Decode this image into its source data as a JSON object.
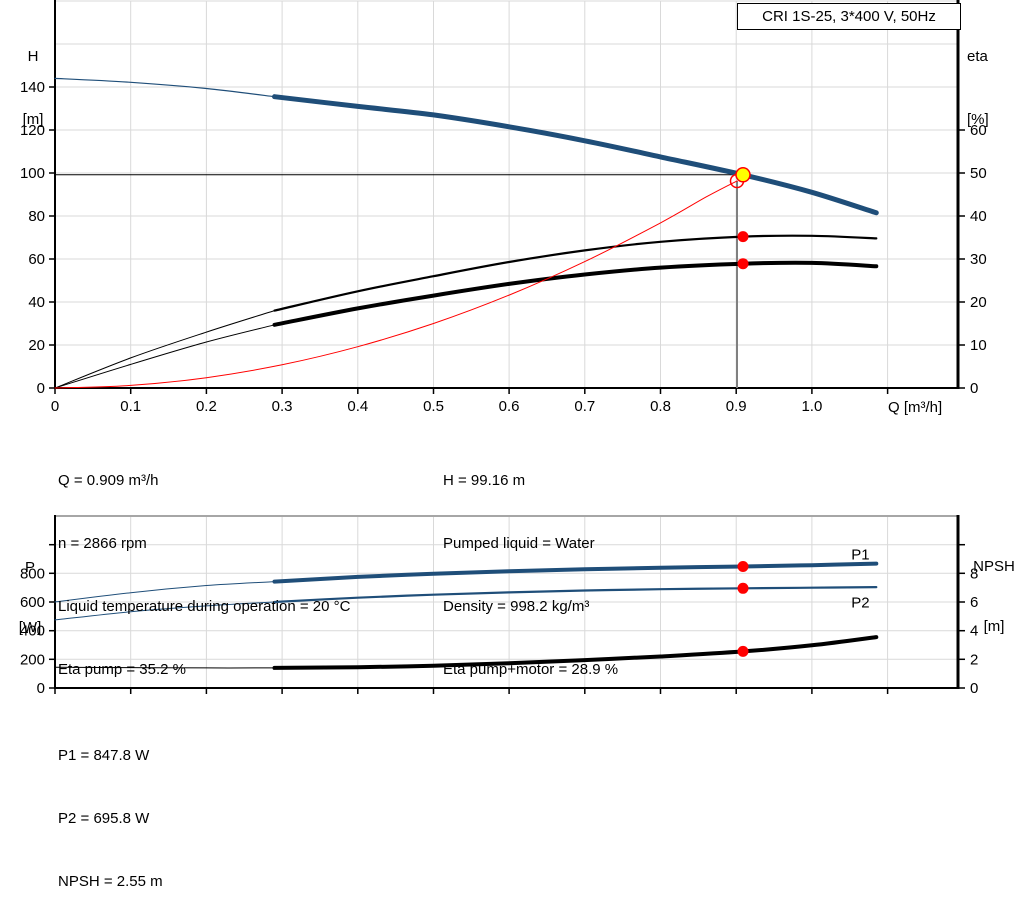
{
  "header": {
    "title_box": "CRI 1S-25, 3*400 V, 50Hz"
  },
  "colors": {
    "blue": "#1f4e79",
    "red": "#ff0000",
    "yellow": "#ffff00",
    "black": "#000000",
    "grid": "#d9d9d9",
    "grid_dark": "#a6a6a6",
    "duty_line": "#808080"
  },
  "chart_data": [
    {
      "type": "line",
      "title": "CRI 1S-25, 3*400 V, 50Hz",
      "x_axis": {
        "label": "Q [m³/h]",
        "min": 0,
        "max": 1.193,
        "ticks": [
          0,
          0.1,
          0.2,
          0.3,
          0.4,
          0.5,
          0.6,
          0.7,
          0.8,
          0.9,
          1.0,
          1.1
        ],
        "tick_labels": [
          "0",
          "0.1",
          "0.2",
          "0.3",
          "0.4",
          "0.5",
          "0.6",
          "0.7",
          "0.8",
          "0.9",
          "1.0",
          ""
        ],
        "grid": [
          0.1,
          0.2,
          0.3,
          0.4,
          0.5,
          0.6,
          0.7,
          0.8,
          0.9,
          1.0,
          1.1
        ]
      },
      "y_left": {
        "label": [
          "H",
          "[m]"
        ],
        "min": 0,
        "max": 180,
        "ticks": [
          0,
          20,
          40,
          60,
          80,
          100,
          120,
          140
        ],
        "tick_labels": [
          "0",
          "20",
          "40",
          "60",
          "80",
          "100",
          "120",
          "140"
        ],
        "grid": [
          20,
          40,
          60,
          80,
          100,
          120,
          140,
          160,
          180
        ]
      },
      "y_right": {
        "label": [
          "eta",
          "[%]"
        ],
        "min": 0,
        "max": 90,
        "ticks": [
          0,
          10,
          20,
          30,
          40,
          50,
          60
        ],
        "tick_labels": [
          "0",
          "10",
          "20",
          "30",
          "40",
          "50",
          "60"
        ]
      },
      "duty": {
        "q": 0.909,
        "h": 99.16,
        "h_line_to_q": 0.901,
        "v_line_q": 0.901,
        "v_line_top": 96.3
      },
      "series": [
        {
          "name": "qh-curve-thin",
          "axis": "left",
          "color": "#1f4e79",
          "width": 1.2,
          "points": [
            [
              0,
              144
            ],
            [
              0.1,
              142.2
            ],
            [
              0.2,
              139.3
            ],
            [
              0.29,
              135.5
            ]
          ]
        },
        {
          "name": "qh-curve",
          "axis": "left",
          "color": "#1f4e79",
          "width": 5,
          "points": [
            [
              0.29,
              135.5
            ],
            [
              0.4,
              131
            ],
            [
              0.5,
              127
            ],
            [
              0.6,
              121.5
            ],
            [
              0.7,
              115
            ],
            [
              0.8,
              107.5
            ],
            [
              0.909,
              99.16
            ],
            [
              1.0,
              91
            ],
            [
              1.085,
              81.5
            ]
          ]
        },
        {
          "name": "eta-pump-thin",
          "axis": "right",
          "color": "#000000",
          "width": 1,
          "points": [
            [
              0,
              0
            ],
            [
              0.1,
              7
            ],
            [
              0.2,
              13
            ],
            [
              0.29,
              18
            ]
          ]
        },
        {
          "name": "eta-pump",
          "axis": "right",
          "color": "#000000",
          "width": 2.2,
          "points": [
            [
              0.29,
              18
            ],
            [
              0.4,
              22.5
            ],
            [
              0.5,
              26
            ],
            [
              0.6,
              29.3
            ],
            [
              0.7,
              32
            ],
            [
              0.8,
              34
            ],
            [
              0.909,
              35.2
            ],
            [
              1.0,
              35.4
            ],
            [
              1.085,
              34.8
            ]
          ]
        },
        {
          "name": "eta-pump-motor-thin",
          "axis": "right",
          "color": "#000000",
          "width": 1,
          "points": [
            [
              0,
              0
            ],
            [
              0.1,
              5.5
            ],
            [
              0.2,
              10.7
            ],
            [
              0.29,
              14.7
            ]
          ]
        },
        {
          "name": "eta-pump-motor",
          "axis": "right",
          "color": "#000000",
          "width": 4,
          "points": [
            [
              0.29,
              14.7
            ],
            [
              0.4,
              18.5
            ],
            [
              0.5,
              21.5
            ],
            [
              0.6,
              24.2
            ],
            [
              0.7,
              26.4
            ],
            [
              0.8,
              28
            ],
            [
              0.909,
              28.9
            ],
            [
              1.0,
              29.1
            ],
            [
              1.085,
              28.3
            ]
          ]
        },
        {
          "name": "system-curve",
          "axis": "left",
          "color": "#ff0000",
          "width": 1,
          "points": [
            [
              0,
              0
            ],
            [
              0.1,
              1.2
            ],
            [
              0.2,
              4.8
            ],
            [
              0.3,
              10.8
            ],
            [
              0.4,
              19.2
            ],
            [
              0.5,
              30
            ],
            [
              0.6,
              43.2
            ],
            [
              0.7,
              58.8
            ],
            [
              0.8,
              76.8
            ],
            [
              0.86,
              88.8
            ],
            [
              0.901,
              96.3
            ]
          ]
        }
      ],
      "markers": [
        {
          "name": "duty-request-marker",
          "q": 0.901,
          "value": 96.3,
          "axis": "left",
          "style": "open",
          "color": "#ff0000",
          "r": 6.5
        },
        {
          "name": "duty-point-marker",
          "q": 0.909,
          "value": 99.16,
          "axis": "left",
          "style": "filled",
          "fill": "#ffff00",
          "stroke": "#ff0000",
          "r": 7
        },
        {
          "name": "eta-pump-duty-marker",
          "q": 0.909,
          "value": 35.2,
          "axis": "right",
          "style": "filled",
          "fill": "#ff0000",
          "r": 5.5
        },
        {
          "name": "eta-pump-motor-duty-marker",
          "q": 0.909,
          "value": 28.9,
          "axis": "right",
          "style": "filled",
          "fill": "#ff0000",
          "r": 5.5
        }
      ]
    },
    {
      "type": "line",
      "top_border": true,
      "x_axis": {
        "label": "",
        "min": 0,
        "max": 1.193,
        "ticks": [
          0,
          0.1,
          0.2,
          0.3,
          0.4,
          0.5,
          0.6,
          0.7,
          0.8,
          0.9,
          1.0,
          1.1
        ],
        "tick_labels": [
          "",
          "",
          "",
          "",
          "",
          "",
          "",
          "",
          "",
          "",
          "",
          ""
        ],
        "grid": [
          0.1,
          0.2,
          0.3,
          0.4,
          0.5,
          0.6,
          0.7,
          0.8,
          0.9,
          1.0,
          1.1
        ]
      },
      "y_left": {
        "label": [
          "P",
          "[W]"
        ],
        "min": 0,
        "max": 1200,
        "ticks": [
          0,
          200,
          400,
          600,
          800,
          1000
        ],
        "tick_labels": [
          "0",
          "200",
          "400",
          "600",
          "800",
          ""
        ],
        "grid": [
          200,
          400,
          600,
          800,
          1000
        ]
      },
      "y_right": {
        "label": [
          "NPSH",
          "[m]"
        ],
        "min": 0,
        "max": 12,
        "ticks": [
          0,
          2,
          4,
          6,
          8,
          10
        ],
        "tick_labels": [
          "0",
          "2",
          "4",
          "6",
          "8",
          ""
        ]
      },
      "series": [
        {
          "name": "p1-curve-thin",
          "axis": "left",
          "color": "#1f4e79",
          "width": 1,
          "points": [
            [
              0,
              600
            ],
            [
              0.1,
              665
            ],
            [
              0.2,
              715
            ],
            [
              0.29,
              742
            ]
          ]
        },
        {
          "name": "p1-curve",
          "axis": "left",
          "color": "#1f4e79",
          "width": 4,
          "points": [
            [
              0.29,
              742
            ],
            [
              0.4,
              775
            ],
            [
              0.5,
              797
            ],
            [
              0.6,
              814
            ],
            [
              0.7,
              828
            ],
            [
              0.8,
              839
            ],
            [
              0.909,
              847.8
            ],
            [
              1.0,
              857
            ],
            [
              1.085,
              868
            ]
          ]
        },
        {
          "name": "p2-curve-thin",
          "axis": "left",
          "color": "#1f4e79",
          "width": 1,
          "points": [
            [
              0,
              475
            ],
            [
              0.1,
              532
            ],
            [
              0.2,
              573
            ],
            [
              0.29,
              600
            ]
          ]
        },
        {
          "name": "p2-curve",
          "axis": "left",
          "color": "#1f4e79",
          "width": 2.2,
          "points": [
            [
              0.29,
              600
            ],
            [
              0.4,
              630
            ],
            [
              0.5,
              651
            ],
            [
              0.6,
              667
            ],
            [
              0.7,
              680
            ],
            [
              0.8,
              689
            ],
            [
              0.909,
              695.8
            ],
            [
              1.0,
              700
            ],
            [
              1.085,
              704
            ]
          ]
        },
        {
          "name": "npsh-curve-thin",
          "axis": "right",
          "color": "#000000",
          "width": 1,
          "points": [
            [
              0,
              1.45
            ],
            [
              0.1,
              1.42
            ],
            [
              0.2,
              1.4
            ],
            [
              0.29,
              1.4
            ]
          ]
        },
        {
          "name": "npsh-curve",
          "axis": "right",
          "color": "#000000",
          "width": 4,
          "points": [
            [
              0.29,
              1.4
            ],
            [
              0.4,
              1.45
            ],
            [
              0.5,
              1.55
            ],
            [
              0.6,
              1.72
            ],
            [
              0.7,
              1.95
            ],
            [
              0.8,
              2.2
            ],
            [
              0.909,
              2.55
            ],
            [
              1.0,
              2.98
            ],
            [
              1.085,
              3.55
            ]
          ]
        }
      ],
      "markers": [
        {
          "name": "p1-duty-marker",
          "q": 0.909,
          "value": 847.8,
          "axis": "left",
          "style": "filled",
          "fill": "#ff0000",
          "r": 5.5
        },
        {
          "name": "p2-duty-marker",
          "q": 0.909,
          "value": 695.8,
          "axis": "left",
          "style": "filled",
          "fill": "#ff0000",
          "r": 5.5
        },
        {
          "name": "npsh-duty-marker",
          "q": 0.909,
          "value": 2.55,
          "axis": "right",
          "style": "filled",
          "fill": "#ff0000",
          "r": 5.5
        }
      ],
      "curve_labels": [
        {
          "text": "P1",
          "q": 1.052,
          "value": 930,
          "axis": "left"
        },
        {
          "text": "P2",
          "q": 1.052,
          "value": 598,
          "axis": "left"
        }
      ]
    }
  ],
  "operating_data": {
    "left": [
      "Q = 0.909 m³/h",
      "n = 2866 rpm",
      "Liquid temperature during operation = 20 °C",
      "Eta pump = 35.2 %"
    ],
    "right": [
      "H = 99.16 m",
      "Pumped liquid = Water",
      "Density = 998.2 kg/m³",
      "Eta pump+motor = 28.9 %"
    ]
  },
  "results": [
    "P1 = 847.8 W",
    "P2 = 695.8 W",
    "NPSH = 2.55 m"
  ]
}
